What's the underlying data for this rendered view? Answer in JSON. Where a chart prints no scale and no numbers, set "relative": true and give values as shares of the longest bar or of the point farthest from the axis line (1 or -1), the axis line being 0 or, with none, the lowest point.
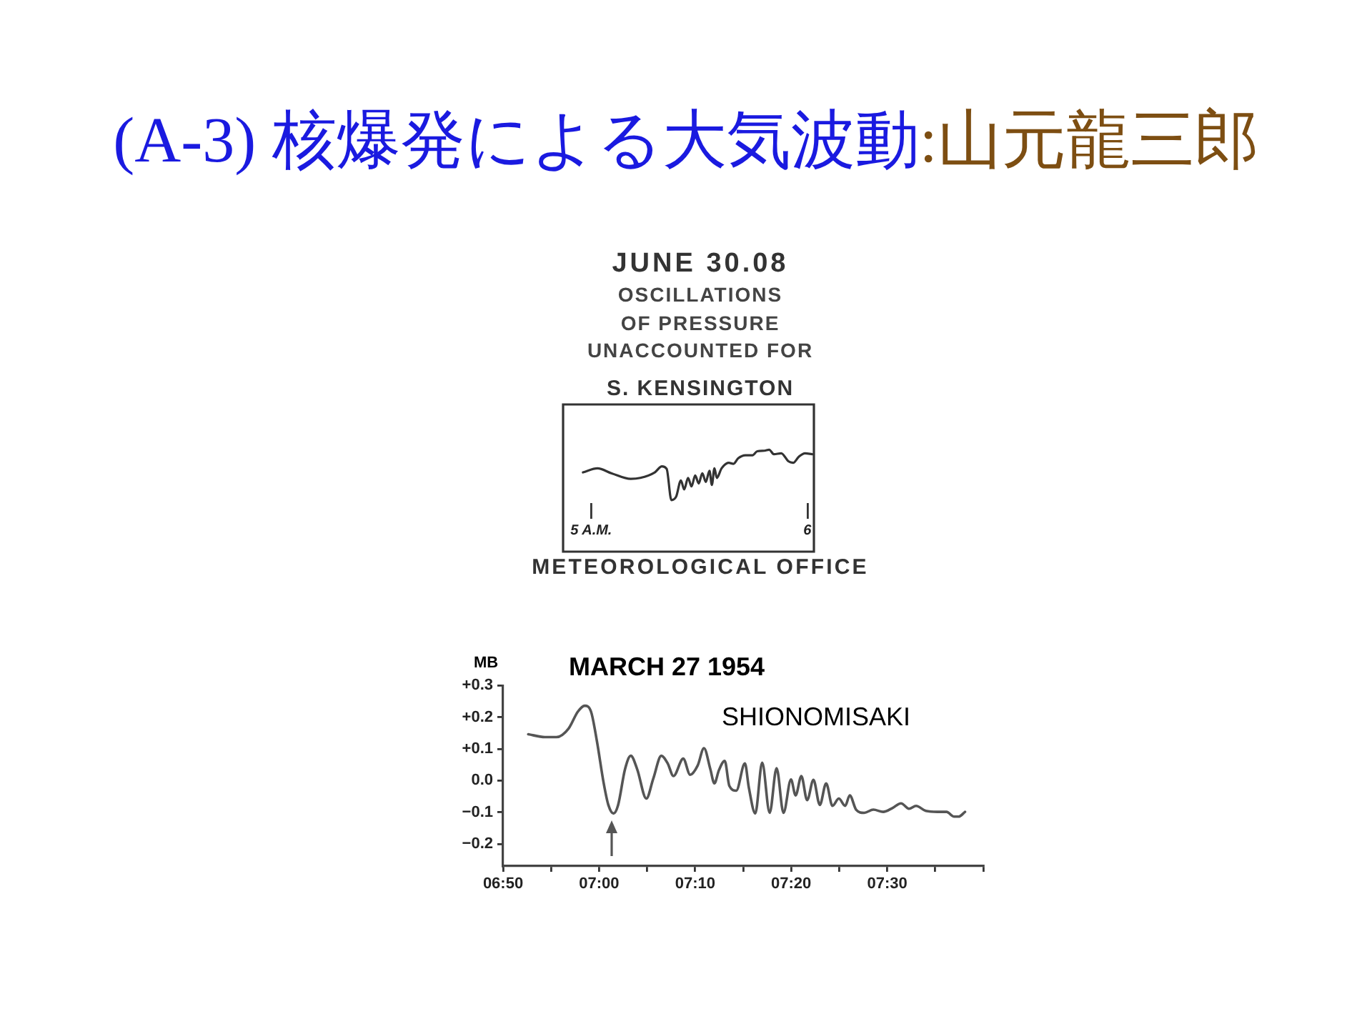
{
  "chart_data": [
    {
      "type": "other",
      "title": "(A-3) 核爆発による大気波動",
      "subtitle": ":山元龍三郎"
    },
    {
      "type": "line",
      "title": "JUNE 30.08",
      "subtitle": "OSCILLATIONS\nOF PRESSURE\nUNACCOUNTED FOR",
      "annotations": [
        "S. KENSINGTON",
        "METEOROLOGICAL OFFICE"
      ],
      "relative": true,
      "color": "#333333",
      "xlim": [
        4.87,
        6.03
      ],
      "xticks": [
        {
          "value": 5,
          "label": "5 A.M."
        },
        6
      ],
      "x": [
        4.962,
        5.029,
        5.095,
        5.183,
        5.227,
        5.294,
        5.327,
        5.349,
        5.371,
        5.393,
        5.415,
        5.43,
        5.448,
        5.464,
        5.481,
        5.497,
        5.514,
        5.53,
        5.547,
        5.558,
        5.57,
        5.581,
        5.603,
        5.636,
        5.658,
        5.68,
        5.713,
        5.746,
        5.768,
        5.801,
        5.823,
        5.845,
        5.879,
        5.912,
        5.934,
        5.96,
        5.989,
        6.022
      ],
      "values": [
        0.55,
        0.63,
        0.53,
        0.42,
        0.44,
        0.55,
        0.67,
        0.62,
        0,
        0.07,
        0.39,
        0.21,
        0.44,
        0.27,
        0.49,
        0.33,
        0.53,
        0.36,
        0.58,
        0.3,
        0.63,
        0.44,
        0.63,
        0.74,
        0.72,
        0.83,
        0.89,
        0.89,
        0.97,
        0.98,
        1,
        0.91,
        0.93,
        0.77,
        0.74,
        0.86,
        0.93,
        0.91
      ]
    },
    {
      "type": "line",
      "title": "MARCH 27 1954",
      "ylabel": "MB",
      "annotations": [
        "SHIONOMISAKI"
      ],
      "color": "#555555",
      "xlim": [
        6.8333,
        7.6667
      ],
      "ylim": [
        -0.27,
        0.3
      ],
      "xticks": [
        {
          "value": 6.8333,
          "label": "06:50"
        },
        {
          "value": 6.9167,
          "label": null
        },
        {
          "value": 7,
          "label": "07:00"
        },
        {
          "value": 7.0833,
          "label": null
        },
        {
          "value": 7.1667,
          "label": "07:10"
        },
        {
          "value": 7.25,
          "label": null
        },
        {
          "value": 7.3333,
          "label": "07:20"
        },
        {
          "value": 7.4167,
          "label": null
        },
        {
          "value": 7.5,
          "label": "07:30"
        },
        {
          "value": 7.5833,
          "label": null
        },
        {
          "value": 7.6667,
          "label": null
        }
      ],
      "yticks": [
        {
          "value": 0.3,
          "label": "+0.3"
        },
        {
          "value": 0.2,
          "label": "+0.2"
        },
        {
          "value": 0.1,
          "label": "+0.1"
        },
        {
          "value": 0,
          "label": "0.0"
        },
        {
          "value": -0.1,
          "label": "−0.1"
        },
        {
          "value": -0.2,
          "label": "−0.2"
        }
      ],
      "x": [
        6.877,
        6.906,
        6.926,
        6.947,
        6.963,
        6.975,
        6.986,
        6.996,
        7.008,
        7.016,
        7.025,
        7.033,
        7.045,
        7.055,
        7.066,
        7.082,
        7.094,
        7.108,
        7.119,
        7.129,
        7.146,
        7.158,
        7.171,
        7.182,
        7.193,
        7.2,
        7.208,
        7.218,
        7.226,
        7.238,
        7.253,
        7.26,
        7.271,
        7.283,
        7.296,
        7.308,
        7.32,
        7.333,
        7.341,
        7.351,
        7.361,
        7.372,
        7.383,
        7.394,
        7.405,
        7.416,
        7.427,
        7.435,
        7.446,
        7.46,
        7.476,
        7.493,
        7.509,
        7.524,
        7.538,
        7.55,
        7.567,
        7.587,
        7.603,
        7.616,
        7.624,
        7.635
      ],
      "values": [
        0.146,
        0.137,
        0.137,
        0.164,
        0.217,
        0.236,
        0.217,
        0.126,
        -0.009,
        -0.077,
        -0.104,
        -0.077,
        0.036,
        0.078,
        0.036,
        -0.057,
        0.006,
        0.078,
        0.054,
        0.014,
        0.069,
        0.018,
        0.047,
        0.102,
        0.036,
        -0.009,
        0.033,
        0.062,
        -0.017,
        -0.032,
        0.054,
        -0.024,
        -0.104,
        0.056,
        -0.102,
        0.039,
        -0.102,
        0.003,
        -0.047,
        0.014,
        -0.062,
        0.002,
        -0.077,
        -0.009,
        -0.08,
        -0.057,
        -0.08,
        -0.047,
        -0.092,
        -0.102,
        -0.092,
        -0.099,
        -0.087,
        -0.072,
        -0.089,
        -0.08,
        -0.096,
        -0.099,
        -0.099,
        -0.114,
        -0.114,
        -0.099
      ]
    }
  ]
}
